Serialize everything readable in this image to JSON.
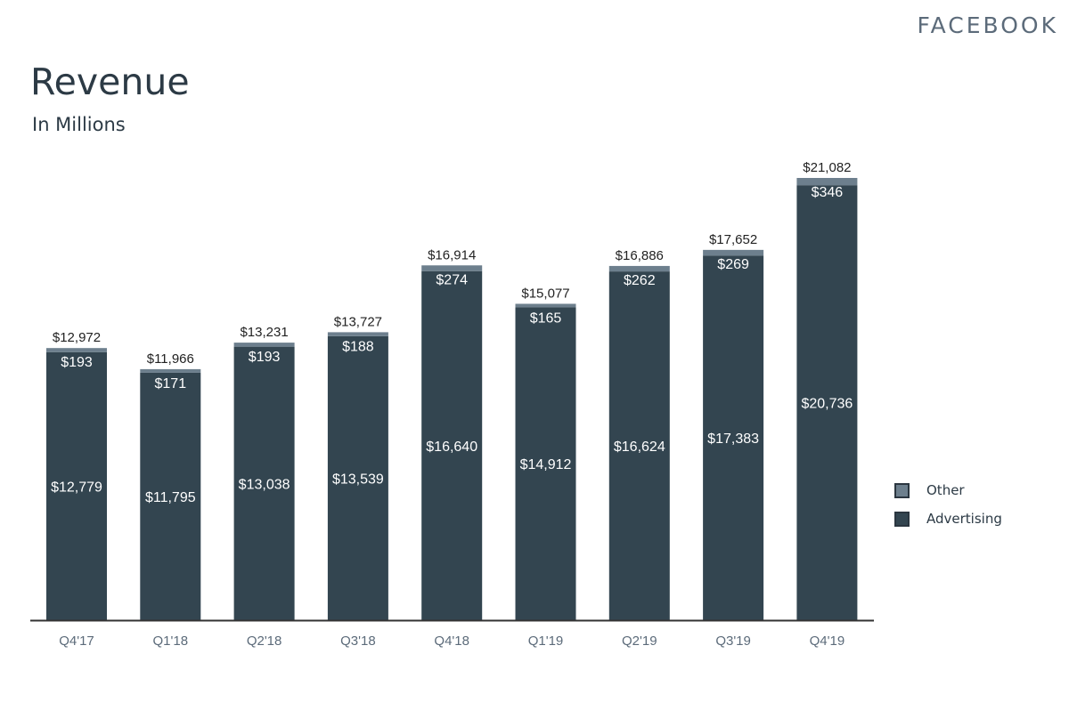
{
  "brand": "FACEBOOK",
  "colors": {
    "advertising": "#334550",
    "other": "#6d7f8d",
    "axis": "#333333",
    "text": "#2c3a45"
  },
  "chart_data": {
    "type": "bar",
    "stacked": true,
    "title": "Revenue",
    "subtitle": "In Millions",
    "categories": [
      "Q4'17",
      "Q1'18",
      "Q2'18",
      "Q3'18",
      "Q4'18",
      "Q1'19",
      "Q2'19",
      "Q3'19",
      "Q4'19"
    ],
    "series": [
      {
        "name": "Advertising",
        "values": [
          12779,
          11795,
          13038,
          13539,
          16640,
          14912,
          16624,
          17383,
          20736
        ]
      },
      {
        "name": "Other",
        "values": [
          193,
          171,
          193,
          188,
          274,
          165,
          262,
          269,
          346
        ]
      }
    ],
    "totals": [
      12972,
      11966,
      13231,
      13727,
      16914,
      15077,
      16886,
      17652,
      21082
    ],
    "value_labels": {
      "Advertising": [
        "$12,779",
        "$11,795",
        "$13,038",
        "$13,539",
        "$16,640",
        "$14,912",
        "$16,624",
        "$17,383",
        "$20,736"
      ],
      "Other": [
        "$193",
        "$171",
        "$193",
        "$188",
        "$274",
        "$165",
        "$262",
        "$269",
        "$346"
      ],
      "Total": [
        "$12,972",
        "$11,966",
        "$13,231",
        "$13,727",
        "$16,914",
        "$15,077",
        "$16,886",
        "$17,652",
        "$21,082"
      ]
    },
    "ylim": [
      0,
      21082
    ],
    "grid": false,
    "legend": {
      "position": "right",
      "items": [
        {
          "name": "Other",
          "color": "#6d7f8d"
        },
        {
          "name": "Advertising",
          "color": "#334550"
        }
      ]
    }
  }
}
